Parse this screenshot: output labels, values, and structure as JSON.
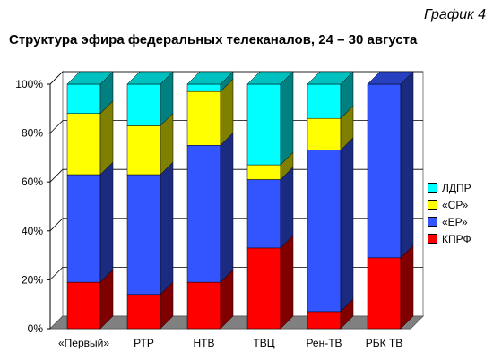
{
  "figure_label": "График 4",
  "chart_data": {
    "type": "bar",
    "stacked": true,
    "percent": true,
    "title": "Структура эфира федеральных телеканалов, 24 – 30 августа",
    "xlabel": "",
    "ylabel": "",
    "ylim": [
      0,
      100
    ],
    "yticks": [
      "0%",
      "20%",
      "40%",
      "60%",
      "80%",
      "100%"
    ],
    "grid": true,
    "legend_position": "right",
    "categories": [
      "«Первый»",
      "РТР",
      "НТВ",
      "ТВЦ",
      "Рен-ТВ",
      "РБК ТВ"
    ],
    "series": [
      {
        "name": "КПРФ",
        "color": "#ff0000",
        "values": [
          19,
          14,
          19,
          33,
          7,
          29
        ]
      },
      {
        "name": "«ЕР»",
        "color": "#3355ff",
        "values": [
          44,
          49,
          56,
          28,
          66,
          71
        ]
      },
      {
        "name": "«СР»",
        "color": "#ffff00",
        "values": [
          25,
          20,
          22,
          6,
          13,
          0
        ]
      },
      {
        "name": "ЛДПР",
        "color": "#00ffff",
        "values": [
          12,
          17,
          3,
          33,
          14,
          0
        ]
      }
    ]
  }
}
